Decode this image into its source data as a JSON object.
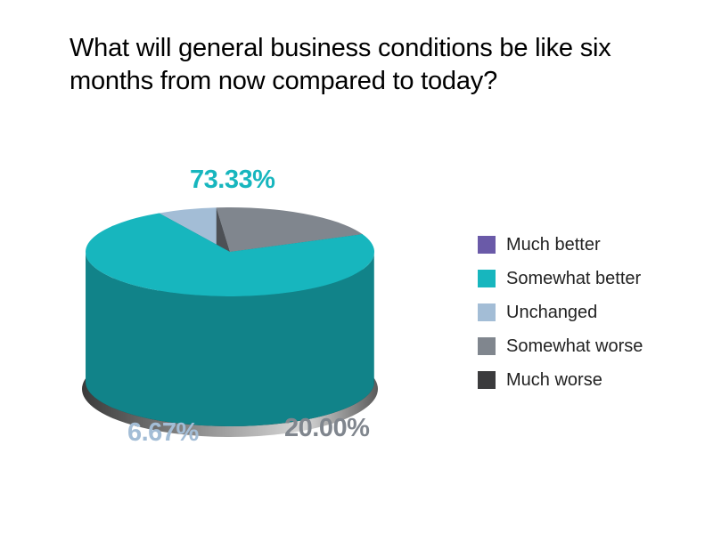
{
  "chart_data": {
    "type": "pie",
    "title": "What will general business conditions be like six months from now compared to today?",
    "slices": [
      {
        "label": "Much better",
        "value": 0.0,
        "color": "#6a5aa8"
      },
      {
        "label": "Somewhat better",
        "value": 73.33,
        "color": "#17b6be"
      },
      {
        "label": "Unchanged",
        "value": 6.67,
        "color": "#a3bdd6"
      },
      {
        "label": "Somewhat worse",
        "value": 20.0,
        "color": "#80868e"
      },
      {
        "label": "Much worse",
        "value": 0.0,
        "color": "#3b3b3d"
      }
    ],
    "data_labels": {
      "somewhat_better": "73.33%",
      "unchanged": "6.67%",
      "somewhat_worse": "20.00%"
    },
    "legend": {
      "placement": "right",
      "items": [
        "Much better",
        "Somewhat better",
        "Unchanged",
        "Somewhat worse",
        "Much worse"
      ]
    }
  }
}
